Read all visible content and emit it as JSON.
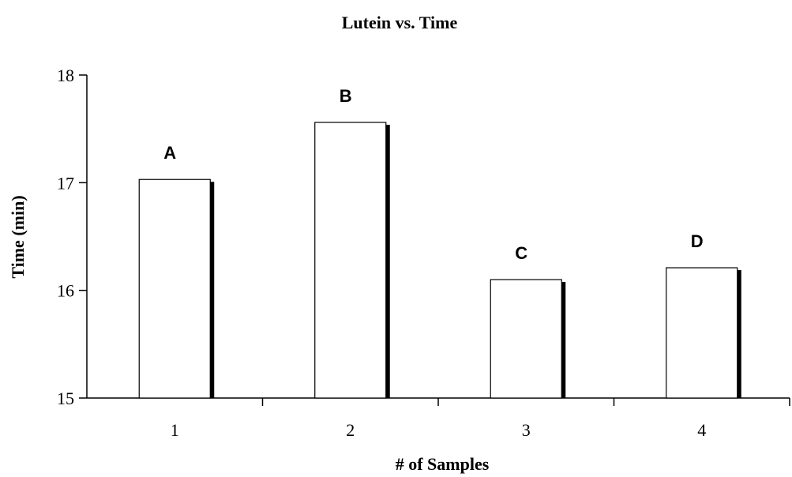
{
  "chart_data": {
    "type": "bar",
    "title": "Lutein vs. Time",
    "xlabel": "# of Samples",
    "ylabel": "Time (min)",
    "categories": [
      "1",
      "2",
      "3",
      "4"
    ],
    "values": [
      17.03,
      17.56,
      16.1,
      16.21
    ],
    "data_labels": [
      "A",
      "B",
      "C",
      "D"
    ],
    "ylim": [
      15,
      18
    ],
    "yticks": [
      "15",
      "16",
      "17",
      "18"
    ],
    "grid": false,
    "legend": "none",
    "colors": {
      "bar_fill": "#ffffff",
      "bar_stroke": "#000000",
      "bar_shadow": "#000000"
    }
  }
}
